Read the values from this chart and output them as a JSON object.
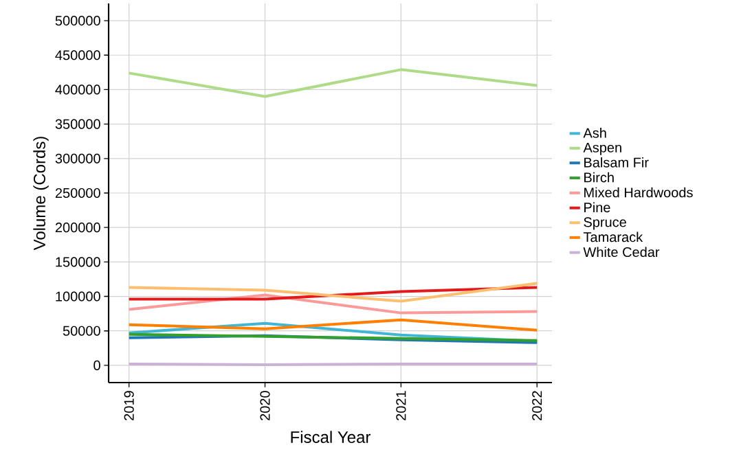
{
  "chart_data": {
    "type": "line",
    "xlabel": "Fiscal Year",
    "ylabel": "Volume (Cords)",
    "x": [
      2019,
      2020,
      2021,
      2022
    ],
    "xlim": [
      2018.85,
      2022.11
    ],
    "xticks": [
      2019,
      2020,
      2021,
      2022
    ],
    "ylim": [
      -25000,
      525000
    ],
    "yticks": [
      0,
      50000,
      100000,
      150000,
      200000,
      250000,
      300000,
      350000,
      400000,
      450000,
      500000
    ],
    "grid": true,
    "legend": "right",
    "marker": "none",
    "line_style": "solid",
    "series": [
      {
        "name": "Ash",
        "color": "#41b6d4",
        "values": [
          47000,
          61000,
          44000,
          35000
        ]
      },
      {
        "name": "Aspen",
        "color": "#addb88",
        "values": [
          424000,
          390000,
          429000,
          406000
        ]
      },
      {
        "name": "Balsam Fir",
        "color": "#1f78b4",
        "values": [
          40000,
          43000,
          37000,
          33000
        ]
      },
      {
        "name": "Birch",
        "color": "#33a02c",
        "values": [
          45000,
          42000,
          39000,
          36000
        ]
      },
      {
        "name": "Mixed Hardwoods",
        "color": "#fb9a99",
        "values": [
          81000,
          102000,
          76000,
          78000
        ]
      },
      {
        "name": "Pine",
        "color": "#e31a1c",
        "values": [
          96000,
          96000,
          107000,
          113000
        ]
      },
      {
        "name": "Spruce",
        "color": "#fdbf6f",
        "values": [
          113000,
          109000,
          93000,
          119000
        ]
      },
      {
        "name": "Tamarack",
        "color": "#ff7f00",
        "values": [
          59000,
          53000,
          66000,
          51000
        ]
      },
      {
        "name": "White Cedar",
        "color": "#cab2d6",
        "values": [
          2000,
          1000,
          2000,
          2000
        ]
      }
    ]
  }
}
